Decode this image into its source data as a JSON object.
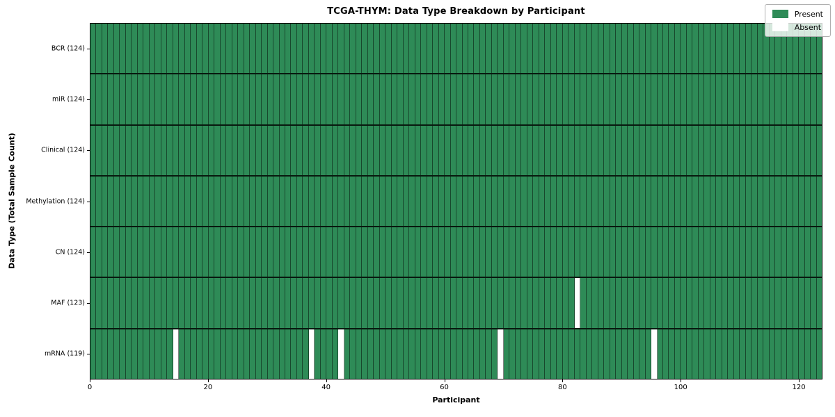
{
  "figure": {
    "background": "#ffffff"
  },
  "chart_data": {
    "type": "heatmap",
    "title": "TCGA-THYM: Data Type Breakdown by Participant",
    "xlabel": "Participant",
    "ylabel": "Data Type (Total Sample Count)",
    "x_ticks": [
      0,
      20,
      40,
      60,
      80,
      100,
      120
    ],
    "x_range": [
      0,
      124
    ],
    "n_participants": 124,
    "grid": "cell-borders",
    "rows": [
      {
        "name": "BCR",
        "label": "BCR (124)",
        "total": 124,
        "absent_participants": []
      },
      {
        "name": "miR",
        "label": "miR (124)",
        "total": 124,
        "absent_participants": []
      },
      {
        "name": "Clinical",
        "label": "Clinical (124)",
        "total": 124,
        "absent_participants": []
      },
      {
        "name": "Methylation",
        "label": "Methylation (124)",
        "total": 124,
        "absent_participants": []
      },
      {
        "name": "CN",
        "label": "CN (124)",
        "total": 124,
        "absent_participants": []
      },
      {
        "name": "MAF",
        "label": "MAF (123)",
        "total": 123,
        "absent_participants": [
          82
        ]
      },
      {
        "name": "mRNA",
        "label": "mRNA (119)",
        "total": 119,
        "absent_participants": [
          14,
          37,
          42,
          69,
          95
        ]
      }
    ],
    "legend": {
      "position": "upper-right",
      "entries": [
        {
          "label": "Present",
          "color": "#2e8b57"
        },
        {
          "label": "Absent",
          "color": "#ffffff"
        }
      ]
    },
    "colors": {
      "present": "#2e8b57",
      "absent": "#ffffff",
      "cell_line": "rgba(0,0,0,0.48)",
      "row_line": "rgba(0,0,0,0.82)",
      "spine": "#000000"
    }
  }
}
